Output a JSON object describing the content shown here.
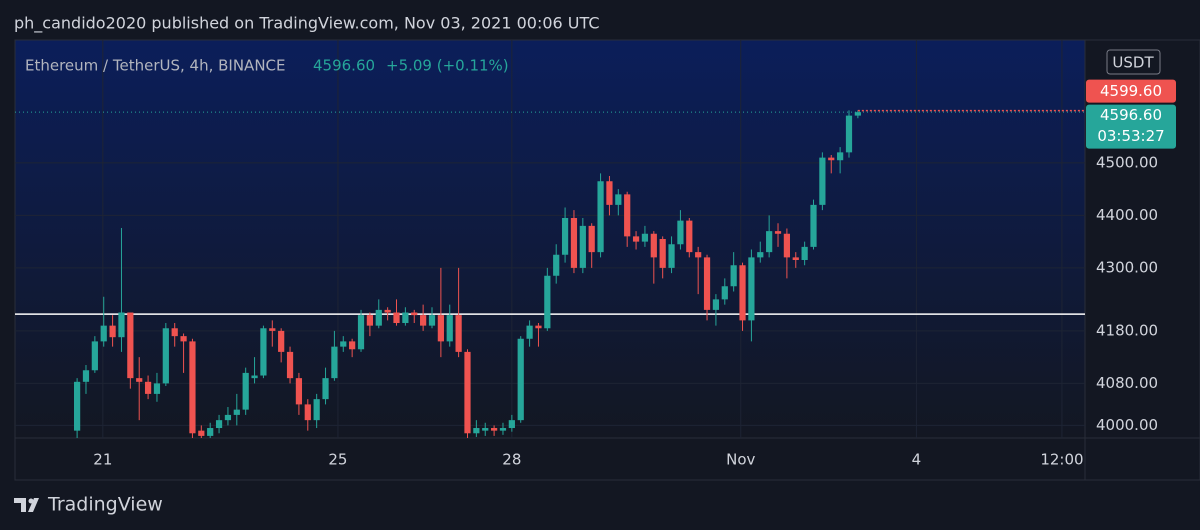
{
  "header": "ph_candido2020 published on TradingView.com, Nov 03, 2021 00:06 UTC",
  "footer": "TradingView",
  "chart_data": {
    "type": "candlestick",
    "title": "Ethereum / TetherUS, 4h, BINANCE",
    "legend_price": {
      "value": 4596.6,
      "label": "4596.60"
    },
    "change": "+5.09 (+0.11%)",
    "currency": "USDT",
    "ask_price": {
      "value": 4599.6,
      "label": "4599.60"
    },
    "last_price": {
      "value": 4596.6,
      "label": "4596.60"
    },
    "countdown": "03:53:27",
    "hline": 4212,
    "up_color": "#26a69a",
    "down_color": "#ef5350",
    "grid": true,
    "xlim": [
      -7,
      113.6
    ],
    "xticks": [
      {
        "value": 2.9,
        "label": "21"
      },
      {
        "value": 29.4,
        "label": "25"
      },
      {
        "value": 49,
        "label": "28"
      },
      {
        "value": 74.8,
        "label": "Nov"
      },
      {
        "value": 94.6,
        "label": "4"
      },
      {
        "value": 111,
        "label": "12:00"
      }
    ],
    "ylim": [
      3976,
      4734
    ],
    "yticks": [
      {
        "value": 4000,
        "label": "4000.00"
      },
      {
        "value": 4080,
        "label": "4080.00"
      },
      {
        "value": 4180,
        "label": "4180.00"
      },
      {
        "value": 4300,
        "label": "4300.00"
      },
      {
        "value": 4400,
        "label": "4400.00"
      },
      {
        "value": 4500,
        "label": "4500.00"
      }
    ],
    "open": [
      3990,
      4083,
      4105,
      4160,
      4190,
      4168,
      4215,
      4090,
      4083,
      4060,
      4080,
      4185,
      4170,
      4160,
      3990,
      3980,
      3995,
      4010,
      4020,
      4030,
      4090,
      4095,
      4185,
      4180,
      4140,
      4090,
      4040,
      4010,
      4050,
      4090,
      4150,
      4160,
      4145,
      4210,
      4190,
      4220,
      4215,
      4195,
      4215,
      4210,
      4190,
      4210,
      4160,
      4210,
      4140,
      3985,
      3990,
      3995,
      3990,
      3995,
      4010,
      4165,
      4190,
      4185,
      4285,
      4325,
      4395,
      4300,
      4380,
      4330,
      4465,
      4420,
      4440,
      4360,
      4350,
      4365,
      4355,
      4300,
      4345,
      4390,
      4330,
      4320,
      4220,
      4240,
      4265,
      4305,
      4200,
      4320,
      4330,
      4370,
      4365,
      4320,
      4315,
      4340,
      4420,
      4510,
      4505,
      4520,
      4590
    ],
    "close": [
      4083,
      4105,
      4160,
      4190,
      4168,
      4215,
      4090,
      4083,
      4060,
      4080,
      4185,
      4170,
      4160,
      3985,
      3980,
      3995,
      4010,
      4020,
      4030,
      4100,
      4095,
      4185,
      4180,
      4140,
      4090,
      4040,
      4010,
      4050,
      4090,
      4150,
      4160,
      4145,
      4210,
      4190,
      4220,
      4215,
      4195,
      4215,
      4210,
      4190,
      4210,
      4160,
      4210,
      4140,
      3985,
      3995,
      3995,
      3990,
      3995,
      4010,
      4165,
      4190,
      4185,
      4285,
      4325,
      4395,
      4300,
      4380,
      4330,
      4465,
      4420,
      4440,
      4360,
      4350,
      4365,
      4320,
      4300,
      4345,
      4390,
      4330,
      4320,
      4220,
      4240,
      4265,
      4305,
      4200,
      4320,
      4330,
      4370,
      4365,
      4320,
      4315,
      4340,
      4420,
      4510,
      4505,
      4520,
      4590,
      4596.6
    ],
    "high": [
      4090,
      4115,
      4170,
      4245,
      4210,
      4376,
      4215,
      4130,
      4095,
      4100,
      4195,
      4195,
      4175,
      4165,
      4000,
      4005,
      4020,
      4035,
      4060,
      4110,
      4130,
      4190,
      4200,
      4185,
      4150,
      4100,
      4050,
      4060,
      4110,
      4180,
      4170,
      4165,
      4220,
      4215,
      4240,
      4225,
      4240,
      4225,
      4220,
      4230,
      4225,
      4300,
      4230,
      4300,
      4145,
      4010,
      4005,
      4000,
      4005,
      4020,
      4170,
      4200,
      4195,
      4300,
      4345,
      4415,
      4410,
      4395,
      4385,
      4480,
      4475,
      4450,
      4445,
      4370,
      4380,
      4370,
      4360,
      4360,
      4410,
      4395,
      4340,
      4325,
      4250,
      4280,
      4330,
      4310,
      4335,
      4350,
      4400,
      4385,
      4375,
      4330,
      4350,
      4430,
      4520,
      4515,
      4530,
      4600,
      4600
    ],
    "low": [
      3970,
      4060,
      4100,
      4150,
      4150,
      4140,
      4070,
      4010,
      4050,
      4045,
      4075,
      4150,
      4100,
      3970,
      3972,
      3975,
      3985,
      4000,
      4000,
      4020,
      4080,
      4090,
      4150,
      4120,
      4080,
      4020,
      3990,
      3995,
      4040,
      4085,
      4140,
      4130,
      4140,
      4170,
      4185,
      4200,
      4190,
      4190,
      4195,
      4180,
      4185,
      4130,
      4150,
      4130,
      3975,
      3978,
      3980,
      3980,
      3982,
      3988,
      4005,
      4150,
      4150,
      4180,
      4270,
      4310,
      4290,
      4290,
      4300,
      4320,
      4400,
      4400,
      4340,
      4335,
      4340,
      4270,
      4280,
      4290,
      4335,
      4320,
      4250,
      4200,
      4190,
      4230,
      4255,
      4180,
      4160,
      4310,
      4320,
      4340,
      4280,
      4300,
      4305,
      4335,
      4410,
      4480,
      4480,
      4510,
      4585
    ]
  }
}
